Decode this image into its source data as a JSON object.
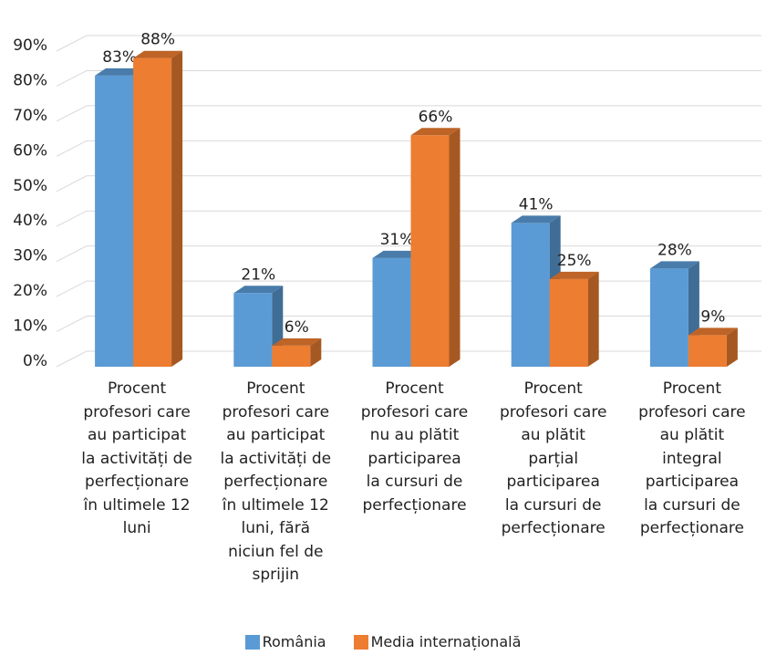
{
  "chart_data": {
    "type": "bar3d",
    "categories": [
      "Procent\nprofesori care\nau participat\nla activități de\nperfecționare\nîn ultimele 12\nluni",
      "Procent\nprofesori care\nau participat\nla activități de\nperfecționare\nîn ultimele 12\nluni, fără\nniciun fel de\nsprijin",
      "Procent\nprofesori care\nnu au plătit\nparticiparea\nla cursuri de\nperfecționare",
      "Procent\nprofesori care\nau plătit\nparțial\nparticiparea\nla  cursuri de\nperfecționare",
      "Procent\nprofesori care\nau plătit\nintegral\nparticiparea\nla cursuri de\nperfecționare"
    ],
    "series": [
      {
        "name": "România",
        "color": "#5b9bd5",
        "values": [
          83,
          21,
          31,
          41,
          28
        ],
        "value_labels": [
          "83%",
          "21%",
          "31%",
          "41%",
          "28%"
        ]
      },
      {
        "name": "Media internațională",
        "color": "#ed7d31",
        "values": [
          88,
          6,
          66,
          25,
          9
        ],
        "value_labels": [
          "88%",
          "6%",
          "66%",
          "25%",
          "9%"
        ]
      }
    ],
    "ylim": [
      0,
      90
    ],
    "yticks": [
      {
        "value": 0,
        "label": "0%"
      },
      {
        "value": 10,
        "label": "10%"
      },
      {
        "value": 20,
        "label": "20%"
      },
      {
        "value": 30,
        "label": "30%"
      },
      {
        "value": 40,
        "label": "40%"
      },
      {
        "value": 50,
        "label": "50%"
      },
      {
        "value": 60,
        "label": "60%"
      },
      {
        "value": 70,
        "label": "70%"
      },
      {
        "value": 80,
        "label": "80%"
      },
      {
        "value": 90,
        "label": "90%"
      }
    ],
    "grid": true,
    "legend": "bottom"
  }
}
